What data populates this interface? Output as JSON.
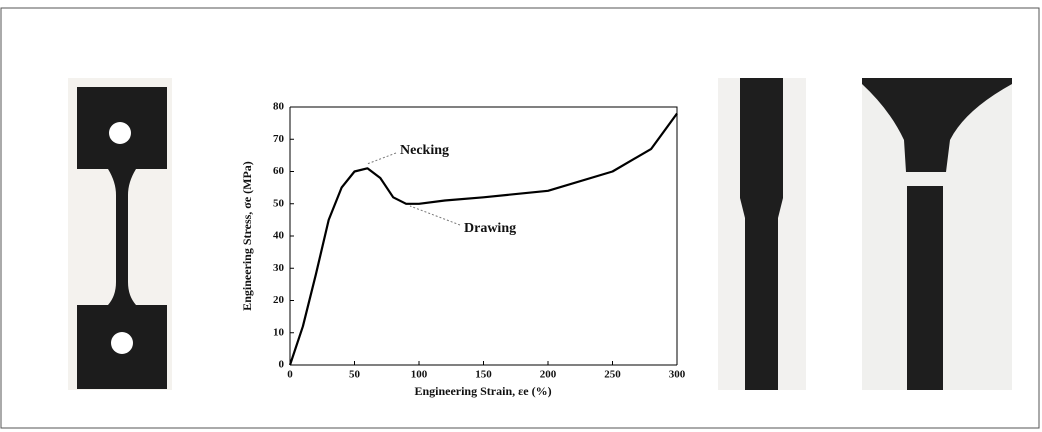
{
  "chart_data": {
    "type": "line",
    "x_label": "Engineering Strain,  εe (%)",
    "y_label": "Engineering Stress,  σe (MPa)",
    "annotations": [
      "Necking",
      "Drawing"
    ],
    "x": [
      0,
      10,
      20,
      30,
      40,
      50,
      60,
      70,
      80,
      90,
      100,
      120,
      150,
      200,
      250,
      280,
      300
    ],
    "series": [
      {
        "name": null,
        "color": "#000000",
        "values": [
          0,
          12,
          28,
          45,
          55,
          60,
          61,
          58,
          52,
          50,
          50,
          51,
          52,
          54,
          60,
          67,
          78
        ]
      }
    ],
    "xlim": [
      0,
      300
    ],
    "xticks": [
      0,
      50,
      100,
      150,
      200,
      250,
      300
    ],
    "ylim": [
      0,
      80
    ],
    "yticks": [
      0,
      10,
      20,
      30,
      40,
      50,
      60,
      70,
      80
    ]
  }
}
